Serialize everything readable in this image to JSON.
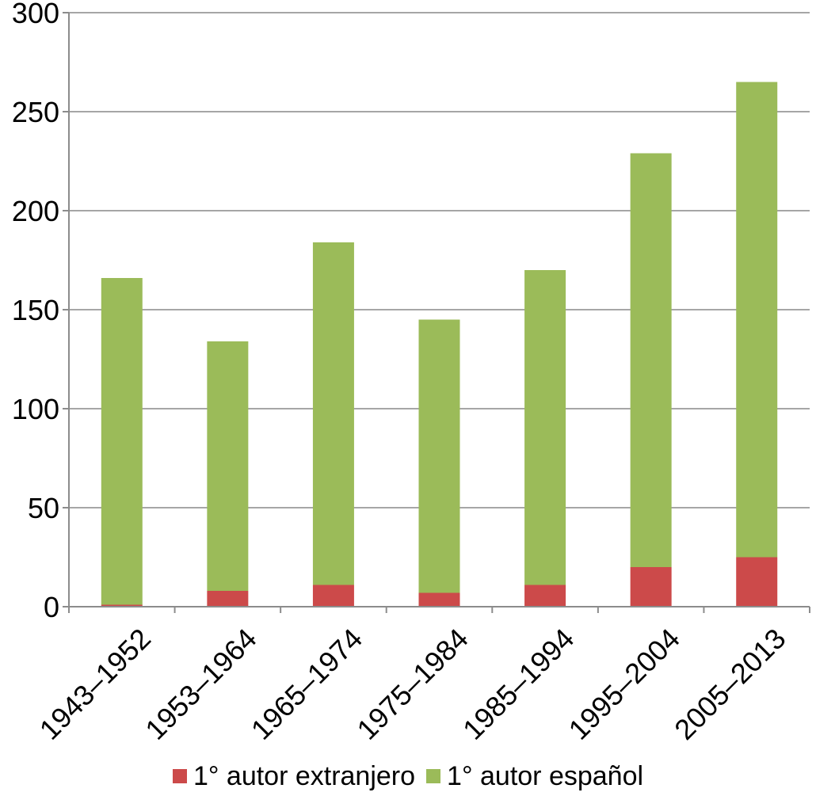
{
  "chart_data": {
    "type": "bar",
    "stacked": true,
    "categories": [
      "1943–1952",
      "1953–1964",
      "1965–1974",
      "1975–1984",
      "1985–1994",
      "1995–2004",
      "2005–2013"
    ],
    "series": [
      {
        "name": "1° autor extranjero",
        "color": "#cc4a4a",
        "values": [
          1,
          8,
          11,
          7,
          11,
          20,
          25
        ]
      },
      {
        "name": "1° autor español",
        "color": "#9bbb59",
        "values": [
          165,
          126,
          173,
          138,
          159,
          209,
          240
        ]
      }
    ],
    "ylim": [
      0,
      300
    ],
    "yticks": [
      0,
      50,
      100,
      150,
      200,
      250,
      300
    ],
    "grid": true,
    "legend_position": "bottom",
    "title": "",
    "xlabel": "",
    "ylabel": ""
  }
}
